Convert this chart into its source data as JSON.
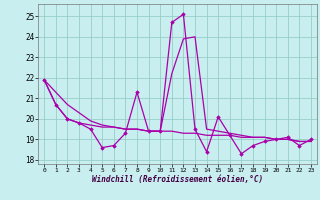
{
  "background_color": "#c8eef0",
  "grid_color": "#98cec8",
  "line_color": "#aa00aa",
  "marker_color": "#aa00aa",
  "xlabel": "Windchill (Refroidissement éolien,°C)",
  "ylim": [
    17.8,
    25.6
  ],
  "xlim": [
    -0.5,
    23.5
  ],
  "yticks": [
    18,
    19,
    20,
    21,
    22,
    23,
    24,
    25
  ],
  "xticks": [
    0,
    1,
    2,
    3,
    4,
    5,
    6,
    7,
    8,
    9,
    10,
    11,
    12,
    13,
    14,
    15,
    16,
    17,
    18,
    19,
    20,
    21,
    22,
    23
  ],
  "series_main": [
    21.9,
    20.7,
    20.0,
    19.8,
    19.5,
    18.6,
    18.7,
    19.3,
    21.3,
    19.4,
    19.4,
    24.7,
    25.1,
    19.5,
    18.4,
    20.1,
    19.2,
    18.3,
    18.7,
    18.9,
    19.0,
    19.1,
    18.7,
    19.0
  ],
  "series_trend": [
    21.9,
    21.3,
    20.7,
    20.3,
    19.9,
    19.7,
    19.6,
    19.5,
    19.5,
    19.4,
    19.4,
    19.4,
    19.3,
    19.3,
    19.2,
    19.2,
    19.2,
    19.1,
    19.1,
    19.1,
    19.0,
    19.0,
    18.9,
    18.9
  ],
  "series_mid": [
    21.9,
    20.7,
    20.0,
    19.8,
    19.7,
    19.6,
    19.6,
    19.5,
    19.5,
    19.4,
    19.4,
    22.2,
    23.9,
    24.0,
    19.5,
    19.4,
    19.3,
    19.2,
    19.1,
    19.1,
    19.0,
    19.0,
    18.9,
    18.9
  ]
}
